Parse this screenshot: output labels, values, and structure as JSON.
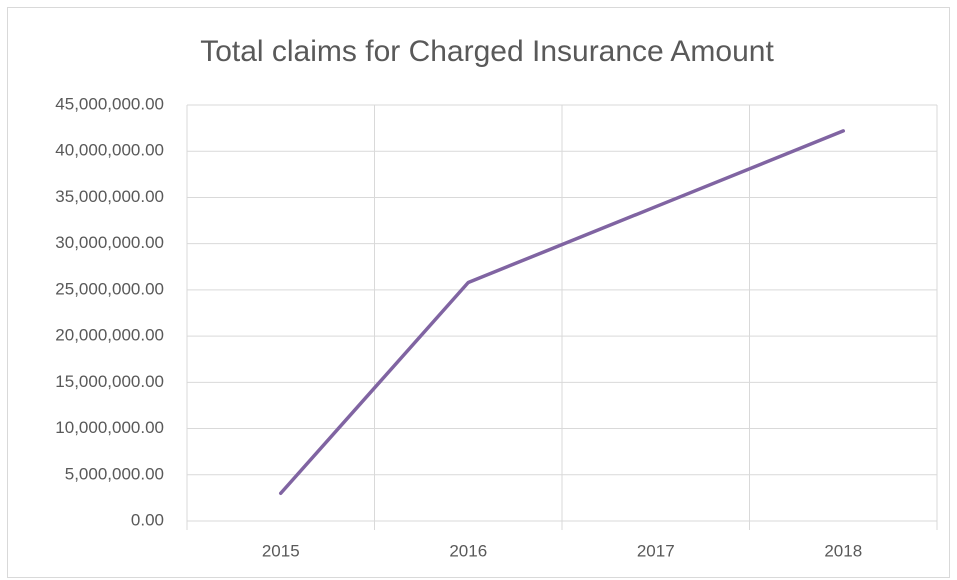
{
  "chart_data": {
    "type": "line",
    "title": "Total claims for Charged Insurance Amount",
    "categories": [
      "2015",
      "2016",
      "2017",
      "2018"
    ],
    "series": [
      {
        "name": "Total claims",
        "color": "#8064a2",
        "values": [
          3000000,
          25800000,
          34000000,
          42200000
        ]
      }
    ],
    "ylim": [
      0,
      45000000
    ],
    "yticks": [
      {
        "value": 0,
        "label": "0.00"
      },
      {
        "value": 5000000,
        "label": "5,000,000.00"
      },
      {
        "value": 10000000,
        "label": "10,000,000.00"
      },
      {
        "value": 15000000,
        "label": "15,000,000.00"
      },
      {
        "value": 20000000,
        "label": "20,000,000.00"
      },
      {
        "value": 25000000,
        "label": "25,000,000.00"
      },
      {
        "value": 30000000,
        "label": "30,000,000.00"
      },
      {
        "value": 35000000,
        "label": "35,000,000.00"
      },
      {
        "value": 40000000,
        "label": "40,000,000.00"
      },
      {
        "value": 45000000,
        "label": "45,000,000.00"
      }
    ],
    "grid": true
  }
}
